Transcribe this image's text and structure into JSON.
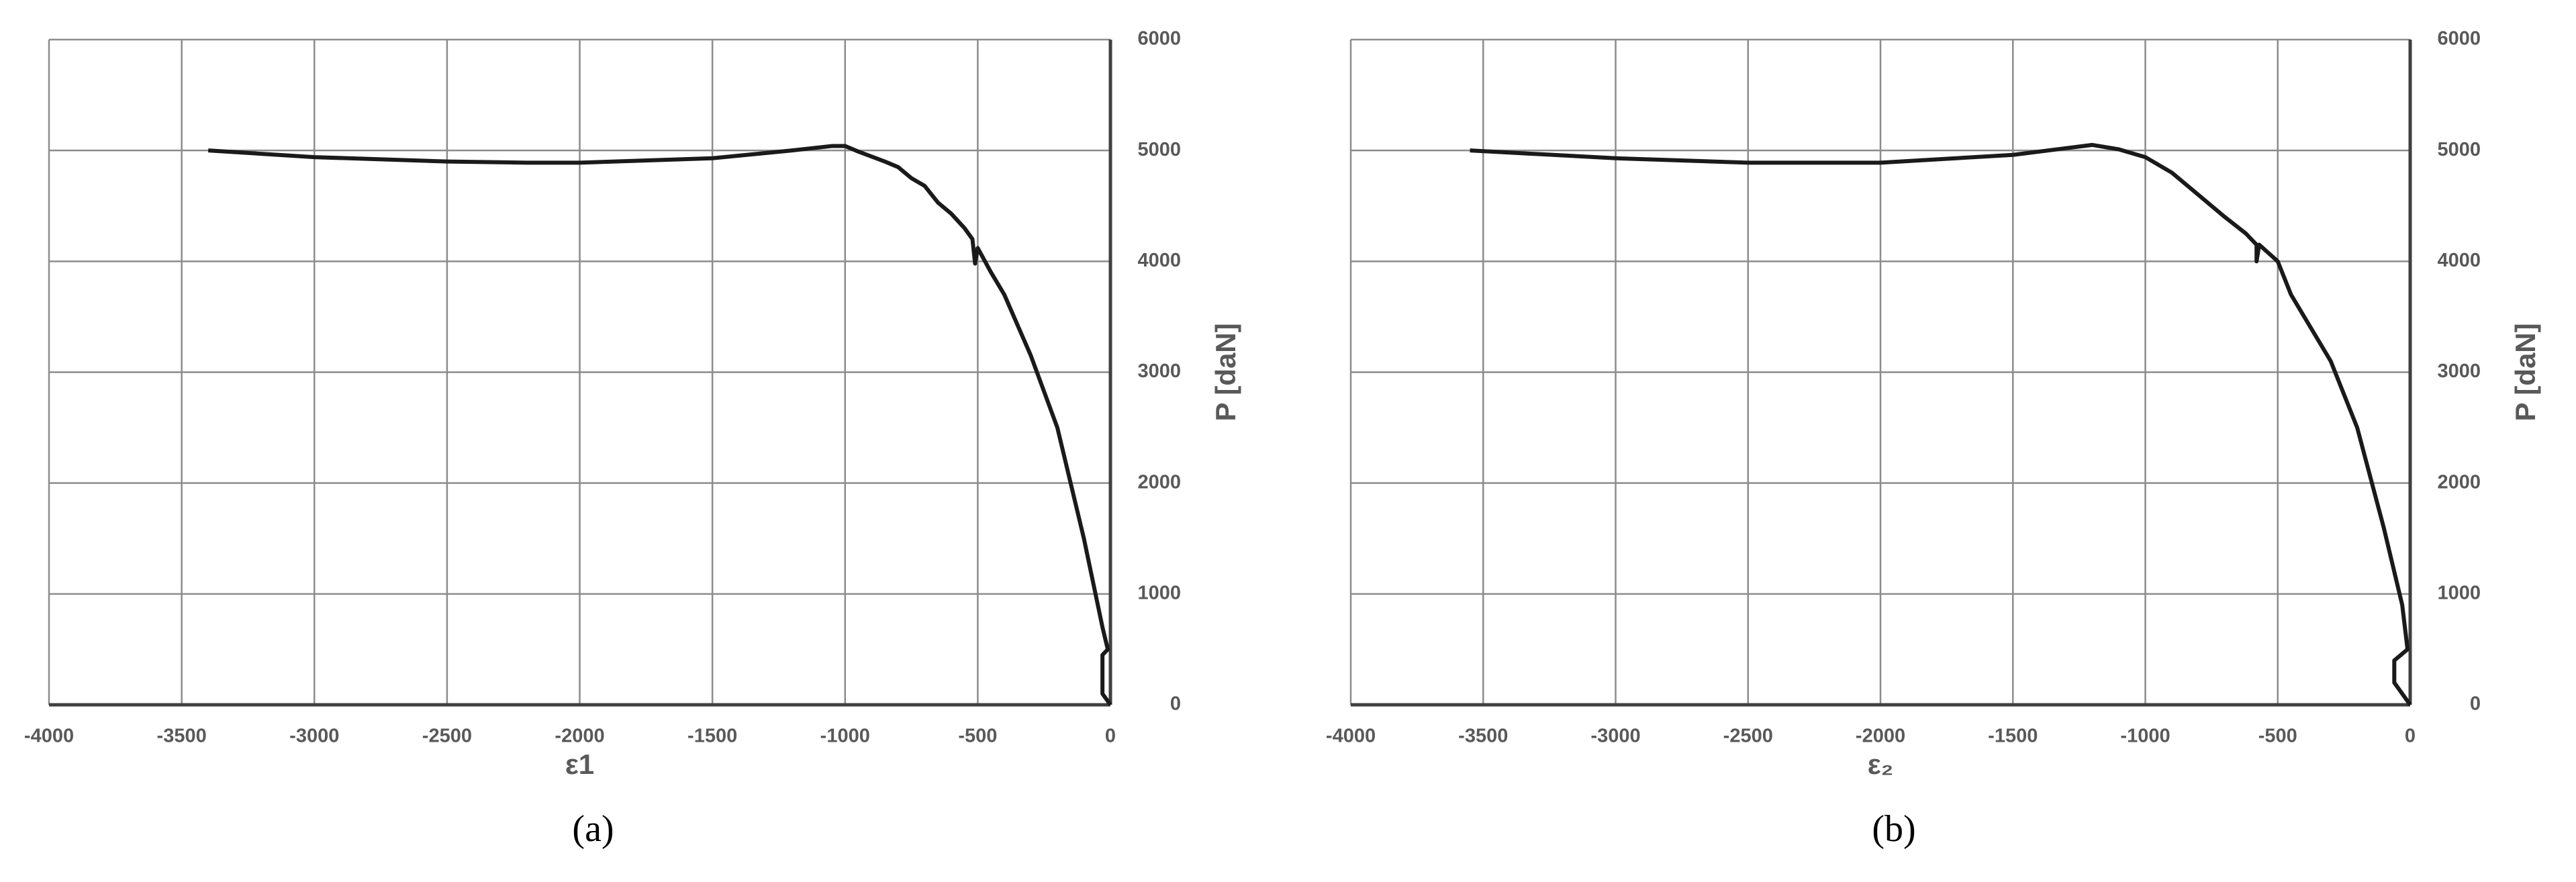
{
  "chart_data": [
    {
      "type": "line",
      "x_label": "ε1",
      "y_label": "P [daN]",
      "caption": "(a)",
      "color": "#1a1a1a",
      "x": [
        -3400,
        -3000,
        -2500,
        -2200,
        -2000,
        -1500,
        -1200,
        -1050,
        -1000,
        -950,
        -850,
        -800,
        -750,
        -700,
        -650,
        -600,
        -550,
        -520,
        -510,
        -500,
        -450,
        -400,
        -300,
        -200,
        -100,
        -30,
        -10,
        -30,
        -30,
        0
      ],
      "values": [
        5000,
        4940,
        4900,
        4890,
        4890,
        4930,
        5000,
        5040,
        5040,
        4990,
        4900,
        4850,
        4750,
        4680,
        4530,
        4430,
        4300,
        4200,
        3980,
        4120,
        3900,
        3700,
        3150,
        2500,
        1500,
        700,
        500,
        450,
        100,
        0
      ],
      "xlim": [
        -4000,
        0
      ],
      "xticks": [
        -4000,
        -3500,
        -3000,
        -2500,
        -2000,
        -1500,
        -1000,
        -500,
        0
      ],
      "ylim": [
        0,
        6000
      ],
      "yticks": [
        0,
        1000,
        2000,
        3000,
        4000,
        5000,
        6000
      ],
      "grid": true
    },
    {
      "type": "line",
      "x_label": "ε₂",
      "y_label": "P [daN]",
      "caption": "(b)",
      "color": "#1a1a1a",
      "x": [
        -3550,
        -3000,
        -2500,
        -2000,
        -1500,
        -1200,
        -1100,
        -1000,
        -900,
        -800,
        -700,
        -620,
        -580,
        -580,
        -570,
        -500,
        -450,
        -300,
        -200,
        -100,
        -30,
        -10,
        -60,
        -60,
        0
      ],
      "values": [
        5000,
        4930,
        4890,
        4890,
        4960,
        5050,
        5010,
        4940,
        4800,
        4600,
        4400,
        4250,
        4150,
        4000,
        4150,
        4000,
        3700,
        3100,
        2500,
        1600,
        900,
        500,
        400,
        200,
        0
      ],
      "xlim": [
        -4000,
        0
      ],
      "xticks": [
        -4000,
        -3500,
        -3000,
        -2500,
        -2000,
        -1500,
        -1000,
        -500,
        0
      ],
      "ylim": [
        0,
        6000
      ],
      "yticks": [
        0,
        1000,
        2000,
        3000,
        4000,
        5000,
        6000
      ],
      "grid": true
    }
  ]
}
